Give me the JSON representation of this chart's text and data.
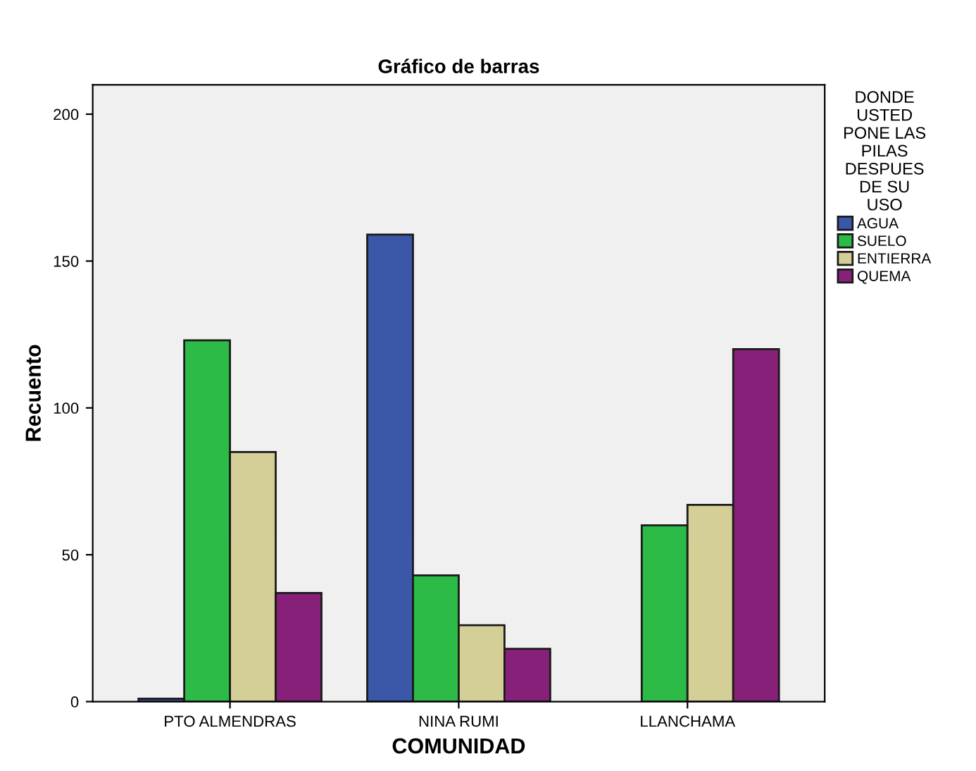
{
  "chart_data": {
    "type": "bar",
    "title": "Gráfico de barras",
    "xlabel": "COMUNIDAD",
    "ylabel": "Recuento",
    "legend_title": "DONDE\nUSTED\nPONE LAS\nPILAS\nDESPUES\nDE SU\nUSO",
    "categories": [
      "PTO ALMENDRAS",
      "NINA RUMI",
      "LLANCHAMA"
    ],
    "series": [
      {
        "name": "AGUA",
        "color": "#3a57a8",
        "values": [
          1,
          159,
          null
        ]
      },
      {
        "name": "SUELO",
        "color": "#2dbb48",
        "values": [
          123,
          43,
          60
        ]
      },
      {
        "name": "ENTIERRA",
        "color": "#d4cf96",
        "values": [
          85,
          26,
          67
        ]
      },
      {
        "name": "QUEMA",
        "color": "#862078",
        "values": [
          37,
          18,
          120
        ]
      }
    ],
    "ylim": [
      0,
      210
    ],
    "yticks": [
      0,
      50,
      100,
      150,
      200
    ],
    "grid": false,
    "legend": "right"
  }
}
